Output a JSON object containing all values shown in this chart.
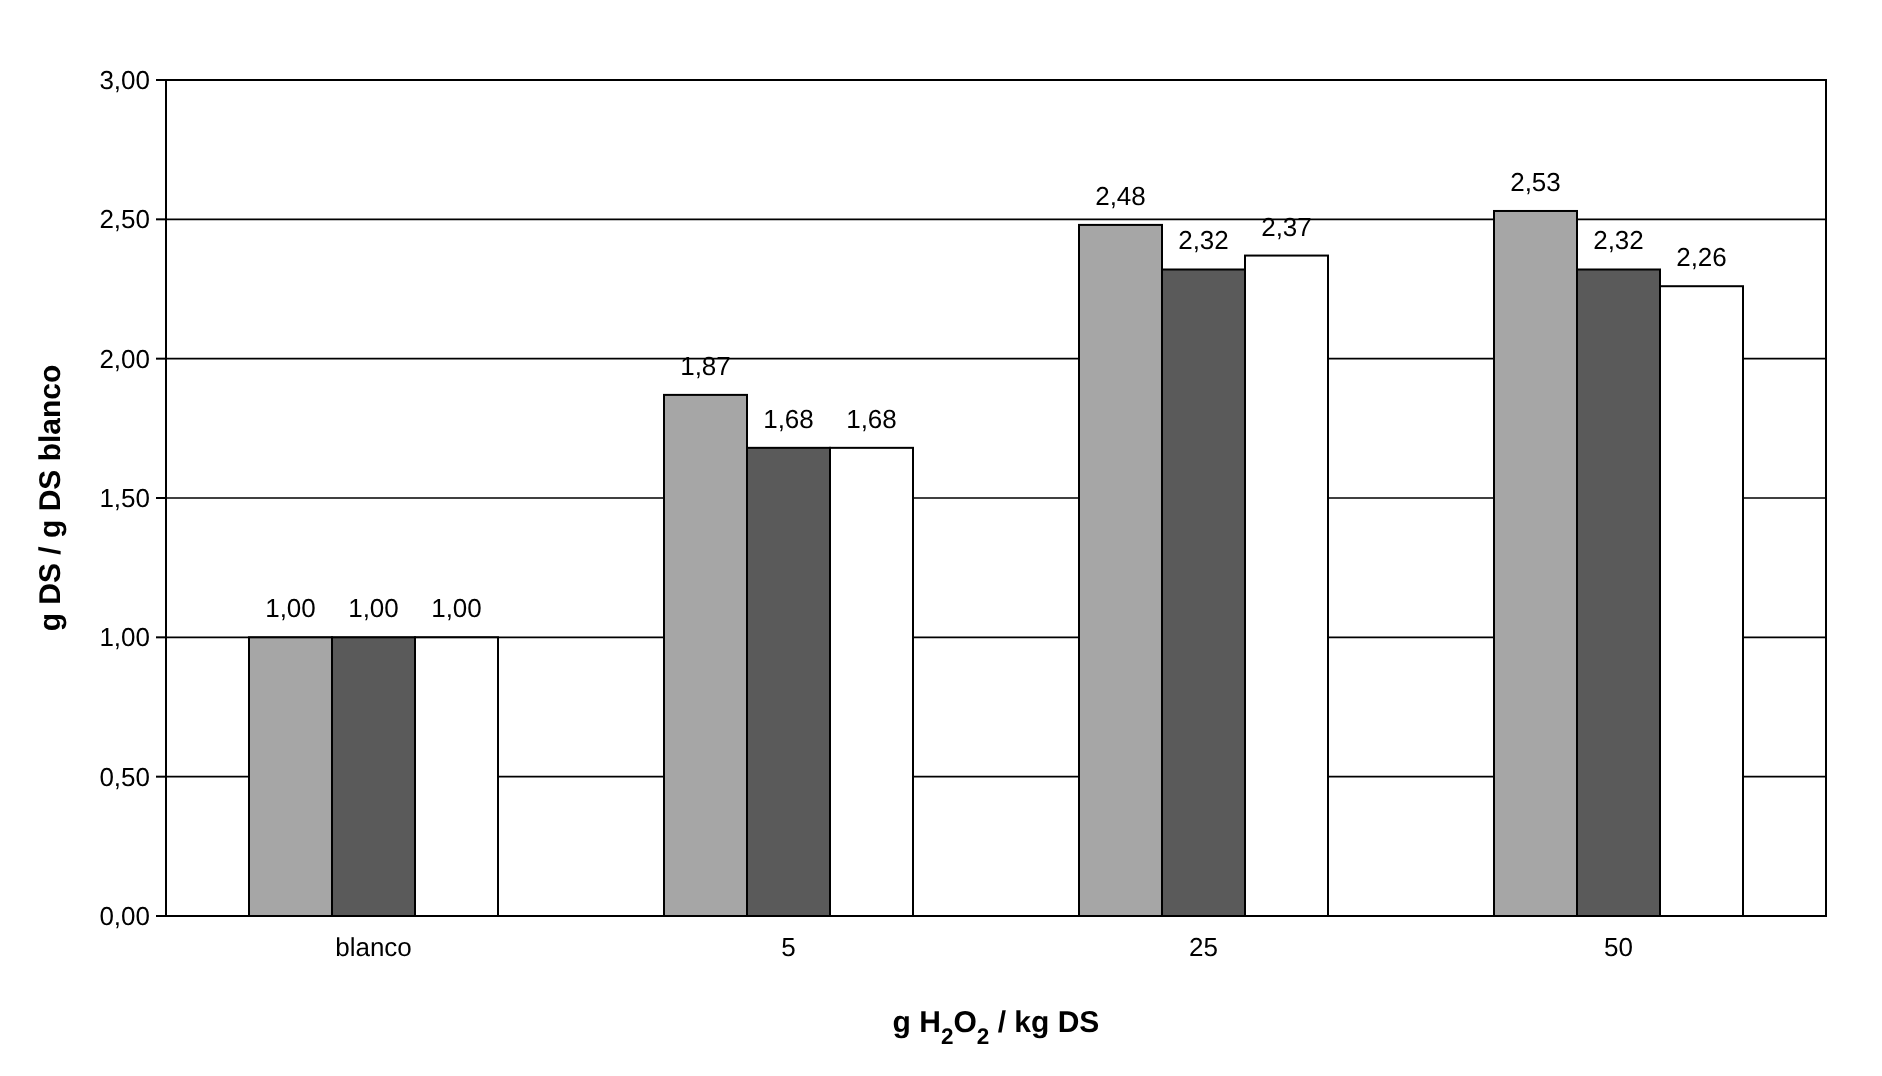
{
  "chart_data": {
    "type": "bar",
    "xlabel": "g H$_{2}$O$_{2}$ / kg DS",
    "ylabel": "g DS / g DS blanco",
    "categories": [
      "blanco",
      "5",
      "25",
      "50"
    ],
    "series": [
      {
        "color": "#a6a6a6",
        "values": [
          1.0,
          1.87,
          2.48,
          2.53
        ],
        "value_labels": [
          "1,00",
          "1,87",
          "2,48",
          "2,53"
        ]
      },
      {
        "color": "#5a5a5a",
        "values": [
          1.0,
          1.68,
          2.32,
          2.32
        ],
        "value_labels": [
          "1,00",
          "1,68",
          "2,32",
          "2,32"
        ]
      },
      {
        "color": "#ffffff",
        "values": [
          1.0,
          1.68,
          2.37,
          2.26
        ],
        "value_labels": [
          "1,00",
          "1,68",
          "2,37",
          "2,26"
        ]
      }
    ],
    "ylim": [
      0,
      3
    ],
    "yticks": [
      {
        "value": 0,
        "label": "0,00"
      },
      {
        "value": 0.5,
        "label": "0,50"
      },
      {
        "value": 1,
        "label": "1,00"
      },
      {
        "value": 1.5,
        "label": "1,50"
      },
      {
        "value": 2,
        "label": "2,00"
      },
      {
        "value": 2.5,
        "label": "2,50"
      },
      {
        "value": 3,
        "label": "3,00"
      }
    ],
    "grid": "y"
  }
}
